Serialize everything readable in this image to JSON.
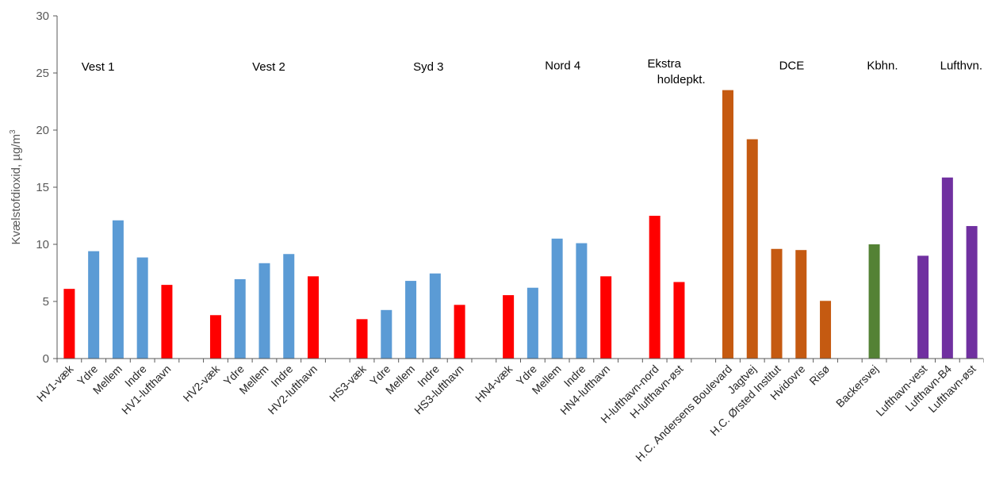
{
  "chart_data": {
    "type": "bar",
    "ylabel": "Kvælstofdioxid, µg/m",
    "ylabel_superscript": "3",
    "ylim": [
      0,
      30
    ],
    "yticks": [
      0,
      5,
      10,
      15,
      20,
      25,
      30
    ],
    "grid": false,
    "colors": {
      "red": "#ff0000",
      "blue": "#5b9bd5",
      "orange": "#c55a11",
      "green": "#548235",
      "purple": "#7030a0"
    },
    "categories": [
      "HV1-væk",
      "Ydre",
      "Mellem",
      "Indre",
      "HV1-lufthavn",
      "",
      "HV2-væk",
      "Ydre",
      "Mellem",
      "Indre",
      "HV2-lufthavn",
      "",
      "HS3-væk",
      "Ydre",
      "Mellem",
      "Indre",
      "HS3-lufthavn",
      "",
      "HN4-væk",
      "Ydre",
      "Mellem",
      "Indre",
      "HN4-lufthavn",
      "",
      "H-lufthavn-nord",
      "H-lufthavn-øst",
      "",
      "H.C. Andersens Boulevard",
      "Jagtvej",
      "H.C. Ørsted Institut",
      "Hvidovre",
      "Risø",
      "",
      "Backersvej",
      "",
      "Lufthavn-vest",
      "Lufthavn-B4",
      "Lufthavn-øst"
    ],
    "values": [
      6.1,
      9.4,
      12.1,
      8.85,
      6.45,
      null,
      3.8,
      6.95,
      8.35,
      9.15,
      7.2,
      null,
      3.45,
      4.25,
      6.8,
      7.45,
      4.7,
      null,
      5.55,
      6.2,
      10.5,
      10.1,
      7.2,
      null,
      12.5,
      6.7,
      null,
      23.5,
      19.2,
      9.6,
      9.5,
      5.05,
      null,
      10.0,
      null,
      9.0,
      15.85,
      11.6
    ],
    "bar_colors": [
      "red",
      "blue",
      "blue",
      "blue",
      "red",
      null,
      "red",
      "blue",
      "blue",
      "blue",
      "red",
      null,
      "red",
      "blue",
      "blue",
      "blue",
      "red",
      null,
      "red",
      "blue",
      "blue",
      "blue",
      "red",
      null,
      "red",
      "red",
      null,
      "orange",
      "orange",
      "orange",
      "orange",
      "orange",
      null,
      "green",
      null,
      "purple",
      "purple",
      "purple"
    ],
    "annotations": [
      {
        "text": "Vest 1",
        "at_category": 1,
        "y": 25.2
      },
      {
        "text": "Vest 2",
        "at_category": 8,
        "y": 25.2
      },
      {
        "text": "Syd 3",
        "at_category": 14.6,
        "y": 25.2
      },
      {
        "text": "Nord 4",
        "at_category": 20,
        "y": 25.3
      },
      {
        "text": "Ekstra",
        "at_category": 24.2,
        "y": 25.5
      },
      {
        "text": "holdepkt.",
        "at_category": 24.6,
        "y": 24.1
      },
      {
        "text": "DCE",
        "at_category": 29.6,
        "y": 25.3
      },
      {
        "text": "Kbhn.",
        "at_category": 33.2,
        "y": 25.3
      },
      {
        "text": "Lufthvn.",
        "at_category": 36.2,
        "y": 25.3
      }
    ]
  }
}
